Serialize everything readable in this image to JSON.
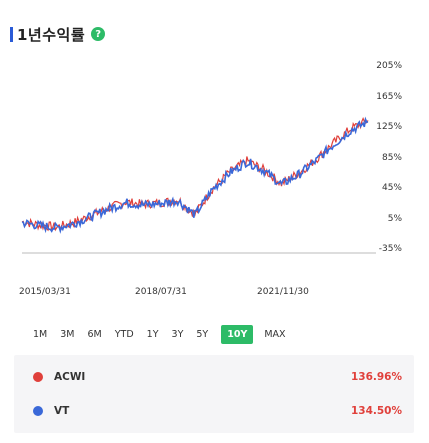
{
  "header": {
    "title": "1년수익률",
    "info_icon": "info-icon",
    "info_glyph": "?"
  },
  "chart_data": {
    "type": "line",
    "title": "",
    "xlabel": "",
    "ylabel": "",
    "y_unit": "%",
    "ylim": [
      -35,
      205
    ],
    "yticks": [
      "205%",
      "165%",
      "125%",
      "85%",
      "45%",
      "5%",
      "-35%"
    ],
    "xticks": [
      "2015/03/31",
      "2018/07/31",
      "2021/11/30"
    ],
    "x": [
      "2015/03",
      "2015/09",
      "2016/03",
      "2016/09",
      "2017/03",
      "2017/09",
      "2018/03",
      "2018/09",
      "2019/03",
      "2019/09",
      "2020/03",
      "2020/09",
      "2021/03",
      "2021/09",
      "2022/03",
      "2022/09",
      "2023/03",
      "2023/09",
      "2024/03",
      "2024/09",
      "2025/03"
    ],
    "series": [
      {
        "color": "#e0403b",
        "values": [
          2,
          -2,
          -5,
          1,
          10,
          20,
          28,
          25,
          27,
          31,
          12,
          45,
          67,
          82,
          70,
          52,
          66,
          84,
          105,
          124,
          135
        ]
      },
      {
        "color": "#3a68d8",
        "values": [
          1,
          -3,
          -6,
          0,
          9,
          19,
          27,
          24,
          26,
          30,
          11,
          44,
          66,
          81,
          69,
          51,
          64,
          82,
          103,
          122,
          133
        ]
      }
    ],
    "grid": false,
    "legend": "bottom"
  },
  "periods": [
    "1M",
    "3M",
    "6M",
    "YTD",
    "1Y",
    "3Y",
    "5Y",
    "10Y",
    "MAX"
  ],
  "active_period": "10Y",
  "legend": [
    {
      "name": "ACWI",
      "color": "#e0403b",
      "value": "136.96%"
    },
    {
      "name": "VT",
      "color": "#3a68d8",
      "value": "134.50%"
    }
  ]
}
